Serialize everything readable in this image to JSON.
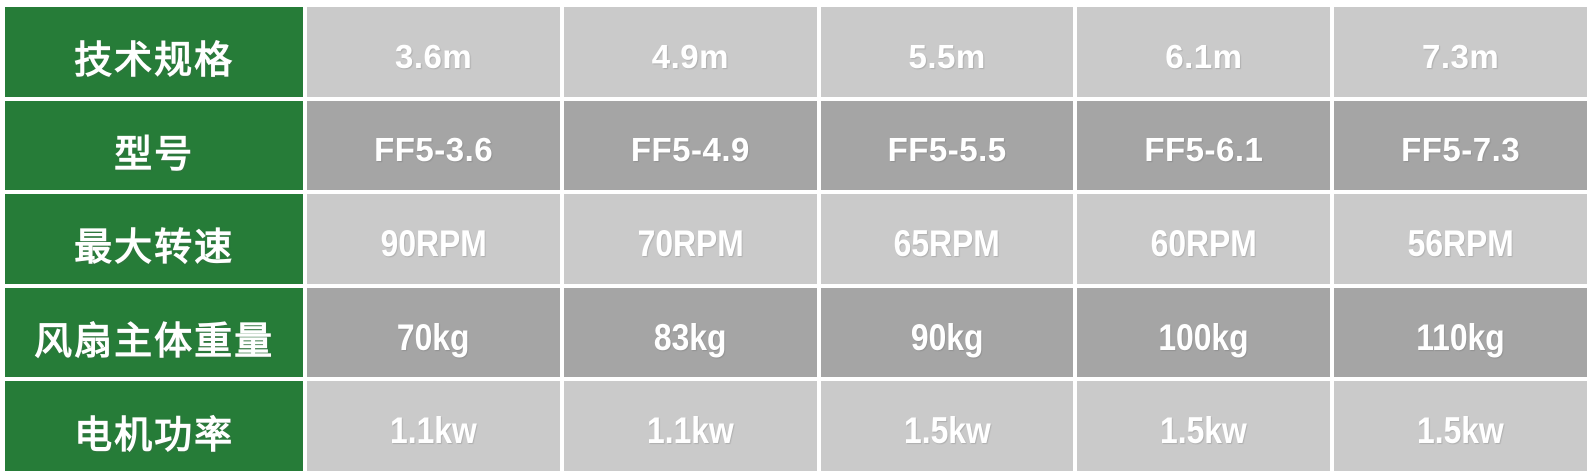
{
  "chart_data": {
    "type": "table",
    "header_column": "技术规格",
    "columns": [
      "3.6m",
      "4.9m",
      "5.5m",
      "6.1m",
      "7.3m"
    ],
    "rows": [
      {
        "label": "型号",
        "values": [
          "FF5-3.6",
          "FF5-4.9",
          "FF5-5.5",
          "FF5-6.1",
          "FF5-7.3"
        ]
      },
      {
        "label": "最大转速",
        "values": [
          "90RPM",
          "70RPM",
          "65RPM",
          "60RPM",
          "56RPM"
        ]
      },
      {
        "label": "风扇主体重量",
        "values": [
          "70kg",
          "83kg",
          "90kg",
          "100kg",
          "110kg"
        ]
      },
      {
        "label": "电机功率",
        "values": [
          "1.1kw",
          "1.1kw",
          "1.5kw",
          "1.5kw",
          "1.5kw"
        ]
      }
    ],
    "colors": {
      "label_column_green": "#267C38",
      "row_light_gray": "#CACACA",
      "row_dark_gray": "#A5A5A5",
      "separator_white": "#FFFFFF",
      "text_white": "#FFFFFF"
    },
    "layout_hints": {
      "label_column_position": "left",
      "row_shading_order": [
        "light",
        "dark",
        "light",
        "dark",
        "light"
      ]
    }
  }
}
